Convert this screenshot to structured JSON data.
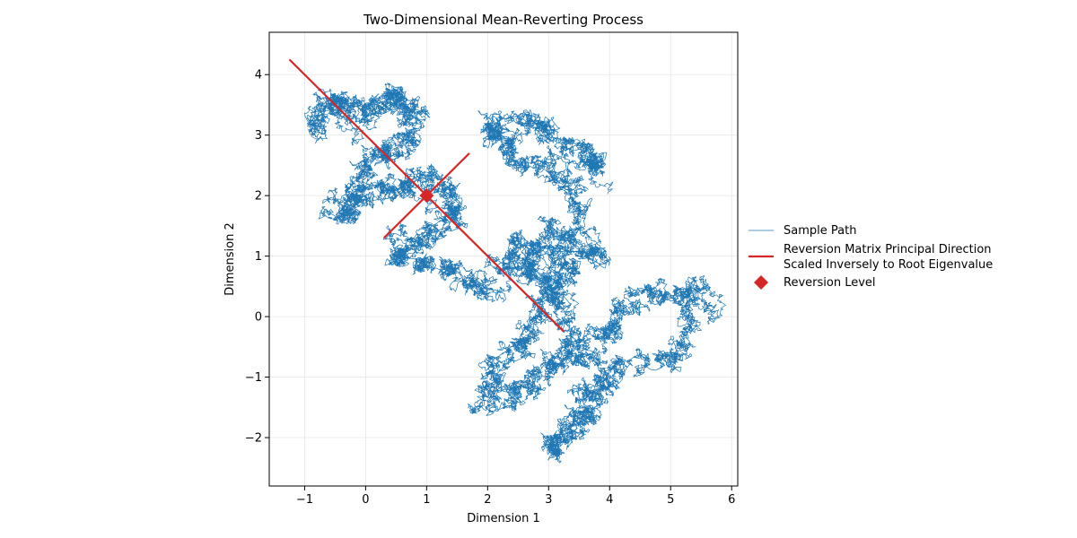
{
  "chart_data": {
    "type": "line",
    "title": "Two-Dimensional Mean-Reverting Process",
    "xlabel": "Dimension 1",
    "ylabel": "Dimension 2",
    "xlim": [
      -1.58,
      6.1
    ],
    "ylim": [
      -2.8,
      4.7
    ],
    "xticks": [
      -1,
      0,
      1,
      2,
      3,
      4,
      5,
      6
    ],
    "yticks": [
      -2,
      -1,
      0,
      1,
      2,
      3,
      4
    ],
    "xtick_labels": [
      "−1",
      "0",
      "1",
      "2",
      "3",
      "4",
      "5",
      "6"
    ],
    "ytick_labels": [
      "−2",
      "−1",
      "0",
      "1",
      "2",
      "3",
      "4"
    ],
    "grid": true,
    "legend_position": "right",
    "colors": {
      "path": "#1f77b4",
      "direction": "#d62728",
      "level": "#d62728"
    },
    "series": [
      {
        "name": "Sample Path",
        "kind": "path",
        "approximate_route": [
          [
            -0.9,
            3.1
          ],
          [
            -0.5,
            3.6
          ],
          [
            -0.1,
            3.3
          ],
          [
            0.4,
            3.7
          ],
          [
            0.9,
            3.4
          ],
          [
            0.5,
            2.8
          ],
          [
            0.0,
            2.5
          ],
          [
            -0.4,
            1.6
          ],
          [
            0.2,
            2.1
          ],
          [
            0.9,
            2.3
          ],
          [
            1.5,
            2.0
          ],
          [
            1.2,
            1.3
          ],
          [
            0.4,
            1.1
          ],
          [
            1.3,
            0.8
          ],
          [
            2.1,
            0.5
          ],
          [
            2.6,
            1.2
          ],
          [
            3.4,
            0.9
          ],
          [
            3.0,
            0.1
          ],
          [
            2.4,
            -0.5
          ],
          [
            2.0,
            -1.4
          ],
          [
            2.7,
            -1.1
          ],
          [
            3.3,
            -0.6
          ],
          [
            4.0,
            -0.3
          ],
          [
            4.6,
            0.4
          ],
          [
            5.6,
            0.5
          ],
          [
            5.2,
            -0.5
          ],
          [
            4.2,
            -0.9
          ],
          [
            3.6,
            -1.5
          ],
          [
            3.0,
            -2.3
          ],
          [
            3.8,
            -1.2
          ],
          [
            3.2,
            0.3
          ],
          [
            2.6,
            0.9
          ],
          [
            3.2,
            1.4
          ],
          [
            3.8,
            1.0
          ],
          [
            3.4,
            2.4
          ],
          [
            2.5,
            2.6
          ],
          [
            2.0,
            3.2
          ],
          [
            2.8,
            3.2
          ],
          [
            3.6,
            2.7
          ],
          [
            3.9,
            2.5
          ]
        ]
      },
      {
        "name": "Reversion Matrix Principal Direction",
        "name_line2": "Scaled Inversely to Root Eigenvalue",
        "kind": "segments",
        "segments": [
          [
            [
              -1.25,
              4.25
            ],
            [
              3.25,
              -0.25
            ]
          ],
          [
            [
              0.3,
              1.3
            ],
            [
              1.7,
              2.7
            ]
          ]
        ]
      },
      {
        "name": "Reversion Level",
        "kind": "point",
        "x": 1,
        "y": 2
      }
    ]
  }
}
